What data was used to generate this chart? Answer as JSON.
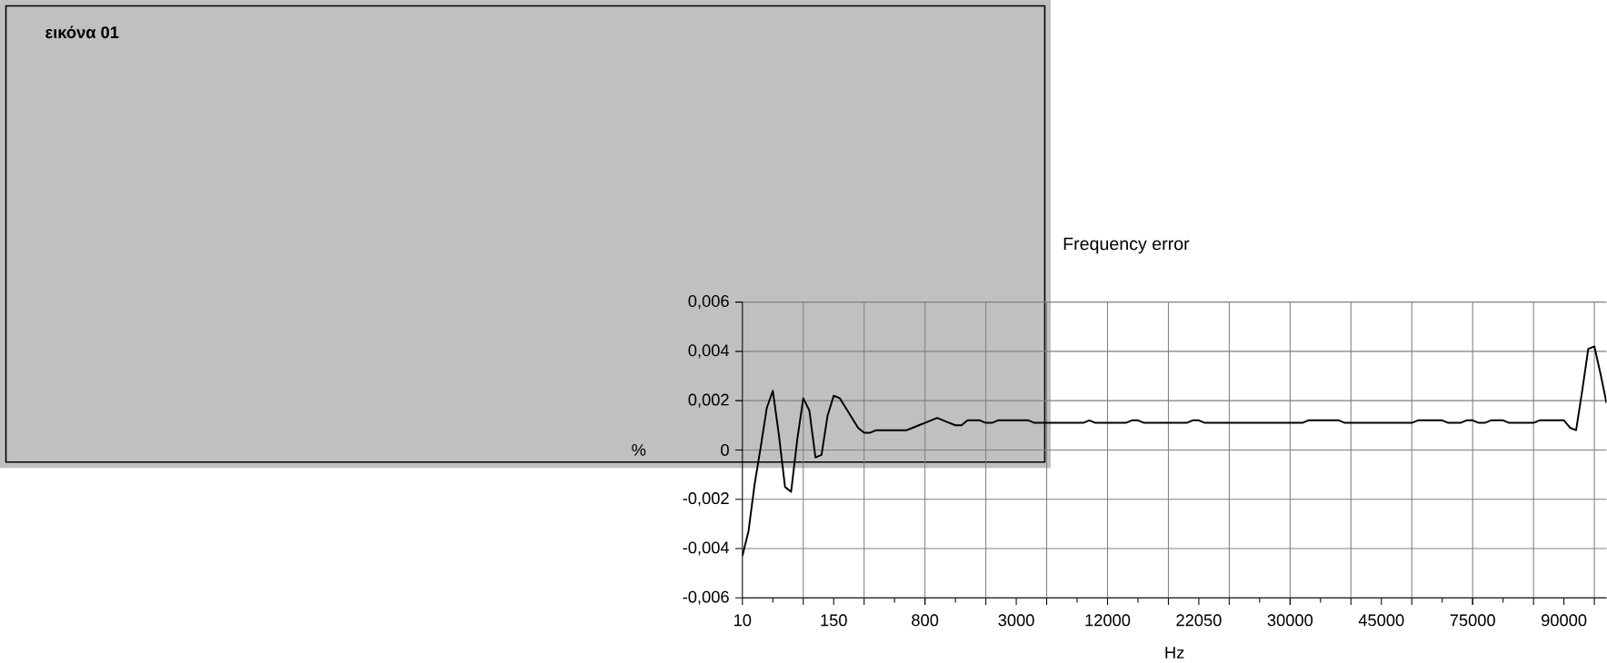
{
  "chart_data": {
    "type": "line",
    "title": "Frequency error",
    "xlabel": "Hz",
    "ylabel": "%",
    "annotations": [
      "εικόνα 01"
    ],
    "categories": [
      "10",
      null,
      null,
      null,
      null,
      null,
      null,
      null,
      null,
      null,
      null,
      null,
      null,
      null,
      null,
      "150",
      null,
      null,
      null,
      null,
      null,
      null,
      null,
      null,
      null,
      null,
      null,
      null,
      null,
      null,
      "800",
      null,
      null,
      null,
      null,
      null,
      null,
      null,
      null,
      null,
      null,
      null,
      null,
      null,
      null,
      "3000",
      null,
      null,
      null,
      null,
      null,
      null,
      null,
      null,
      null,
      null,
      null,
      null,
      null,
      null,
      "12000",
      null,
      null,
      null,
      null,
      null,
      null,
      null,
      null,
      null,
      null,
      null,
      null,
      null,
      null,
      "22050",
      null,
      null,
      null,
      null,
      null,
      null,
      null,
      null,
      null,
      null,
      null,
      null,
      null,
      null,
      "30000",
      null,
      null,
      null,
      null,
      null,
      null,
      null,
      null,
      null,
      null,
      null,
      null,
      null,
      null,
      "45000",
      null,
      null,
      null,
      null,
      null,
      null,
      null,
      null,
      null,
      null,
      null,
      null,
      null,
      null,
      "75000",
      null,
      null,
      null,
      null,
      null,
      null,
      null,
      null,
      null,
      null,
      null,
      null,
      null,
      null,
      "90000",
      null,
      null,
      null,
      null,
      null,
      null,
      null
    ],
    "series": [
      {
        "color": "#000000",
        "values": [
          -0.0043,
          -0.0033,
          -0.0014,
          0.0001,
          0.0017,
          0.0024,
          0.0006,
          -0.0015,
          -0.0017,
          0.0004,
          0.0021,
          0.0016,
          -0.0003,
          -0.0002,
          0.0014,
          0.0022,
          0.0021,
          0.0017,
          0.0013,
          0.0009,
          0.0007,
          0.0007,
          0.0008,
          0.0008,
          0.0008,
          0.0008,
          0.0008,
          0.0008,
          0.0009,
          0.001,
          0.0011,
          0.0012,
          0.0013,
          0.0012,
          0.0011,
          0.001,
          0.001,
          0.0012,
          0.0012,
          0.0012,
          0.0011,
          0.0011,
          0.0012,
          0.0012,
          0.0012,
          0.0012,
          0.0012,
          0.0012,
          0.0011,
          0.0011,
          0.0011,
          0.0011,
          0.0011,
          0.0011,
          0.0011,
          0.0011,
          0.0011,
          0.0012,
          0.0011,
          0.0011,
          0.0011,
          0.0011,
          0.0011,
          0.0011,
          0.0012,
          0.0012,
          0.0011,
          0.0011,
          0.0011,
          0.0011,
          0.0011,
          0.0011,
          0.0011,
          0.0011,
          0.0012,
          0.0012,
          0.0011,
          0.0011,
          0.0011,
          0.0011,
          0.0011,
          0.0011,
          0.0011,
          0.0011,
          0.0011,
          0.0011,
          0.0011,
          0.0011,
          0.0011,
          0.0011,
          0.0011,
          0.0011,
          0.0011,
          0.0012,
          0.0012,
          0.0012,
          0.0012,
          0.0012,
          0.0012,
          0.0011,
          0.0011,
          0.0011,
          0.0011,
          0.0011,
          0.0011,
          0.0011,
          0.0011,
          0.0011,
          0.0011,
          0.0011,
          0.0011,
          0.0012,
          0.0012,
          0.0012,
          0.0012,
          0.0012,
          0.0011,
          0.0011,
          0.0011,
          0.0012,
          0.0012,
          0.0011,
          0.0011,
          0.0012,
          0.0012,
          0.0012,
          0.0011,
          0.0011,
          0.0011,
          0.0011,
          0.0011,
          0.0012,
          0.0012,
          0.0012,
          0.0012,
          0.0012,
          0.0009,
          0.0008,
          0.0024,
          0.0041,
          0.0042,
          0.0031,
          0.0019
        ]
      }
    ],
    "ylim": [
      -0.006,
      0.006
    ],
    "yticks": [
      {
        "value": -0.006,
        "label": "-0,006"
      },
      {
        "value": -0.004,
        "label": "-0,004"
      },
      {
        "value": -0.002,
        "label": "-0,002"
      },
      0,
      {
        "value": 0.002,
        "label": "0,002"
      },
      {
        "value": 0.004,
        "label": "0,004"
      },
      {
        "value": 0.006,
        "label": "0,006"
      }
    ],
    "grid": true
  }
}
